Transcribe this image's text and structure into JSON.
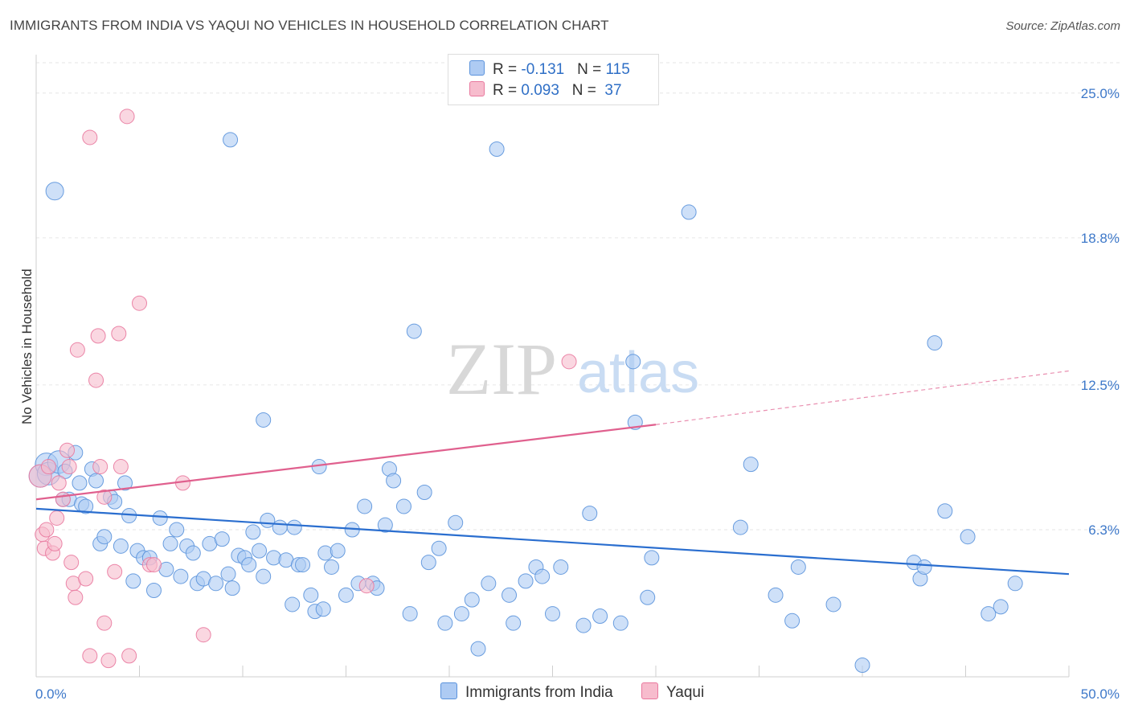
{
  "title": "IMMIGRANTS FROM INDIA VS YAQUI NO VEHICLES IN HOUSEHOLD CORRELATION CHART",
  "source": "Source: ZipAtlas.com",
  "watermark": {
    "zip": "ZIP",
    "atlas": "atlas"
  },
  "legend": {
    "rows": [
      {
        "r_label": "R = ",
        "r_value": "-0.131",
        "n_label": "N = ",
        "n_value": "115",
        "color": "#aecbf3"
      },
      {
        "r_label": "R = ",
        "r_value": "0.093",
        "n_label": "N = ",
        "n_value": " 37",
        "color": "#f7bccd"
      }
    ]
  },
  "bottom_legend": [
    "Immigrants from India",
    "Yaqui"
  ],
  "chart_data": {
    "type": "scatter",
    "title": "IMMIGRANTS FROM INDIA VS YAQUI NO VEHICLES IN HOUSEHOLD CORRELATION CHART",
    "xlabel": "",
    "ylabel": "No Vehicles in Household",
    "xlim": [
      0,
      50
    ],
    "ylim": [
      0,
      26.3
    ],
    "x_tick_labels": [
      "0.0%",
      "50.0%"
    ],
    "y_ticks": [
      6.3,
      12.5,
      18.8,
      25.0
    ],
    "y_tick_labels": [
      "6.3%",
      "12.5%",
      "18.8%",
      "25.0%"
    ],
    "grid": true,
    "legend_position": "top-center",
    "colors": {
      "india": "#5b93dc",
      "india_fill": "#aecbf3",
      "yaqui": "#e9799e",
      "yaqui_fill": "#f7bccd",
      "india_line": "#2a6ecf",
      "yaqui_line": "#e0608e"
    },
    "series": [
      {
        "name": "Immigrants from India",
        "r": -0.131,
        "n": 115,
        "trend": {
          "x": [
            0,
            50
          ],
          "y": [
            7.2,
            4.4
          ]
        },
        "points": [
          [
            0.2,
            8.6
          ],
          [
            0.5,
            9.1
          ],
          [
            0.6,
            8.7
          ],
          [
            0.9,
            20.8
          ],
          [
            1.1,
            9.2
          ],
          [
            1.3,
            7.6
          ],
          [
            1.4,
            8.8
          ],
          [
            1.6,
            7.6
          ],
          [
            1.9,
            9.6
          ],
          [
            2.1,
            8.3
          ],
          [
            2.2,
            7.4
          ],
          [
            2.4,
            7.3
          ],
          [
            2.7,
            8.9
          ],
          [
            2.9,
            8.4
          ],
          [
            3.1,
            5.7
          ],
          [
            3.3,
            6.0
          ],
          [
            3.6,
            7.7
          ],
          [
            3.8,
            7.5
          ],
          [
            4.1,
            5.6
          ],
          [
            4.3,
            8.3
          ],
          [
            4.5,
            6.9
          ],
          [
            4.7,
            4.1
          ],
          [
            4.9,
            5.4
          ],
          [
            5.2,
            5.1
          ],
          [
            5.5,
            5.1
          ],
          [
            5.7,
            3.7
          ],
          [
            6.0,
            6.8
          ],
          [
            6.3,
            4.6
          ],
          [
            6.5,
            5.7
          ],
          [
            6.8,
            6.3
          ],
          [
            7.0,
            4.3
          ],
          [
            7.3,
            5.6
          ],
          [
            7.6,
            5.3
          ],
          [
            7.8,
            4.0
          ],
          [
            8.1,
            4.2
          ],
          [
            8.4,
            5.7
          ],
          [
            8.7,
            4.0
          ],
          [
            9.0,
            5.9
          ],
          [
            9.3,
            4.4
          ],
          [
            9.5,
            3.8
          ],
          [
            9.8,
            5.2
          ],
          [
            10.1,
            5.1
          ],
          [
            10.3,
            4.8
          ],
          [
            10.5,
            6.2
          ],
          [
            10.8,
            5.4
          ],
          [
            11.0,
            4.3
          ],
          [
            11.2,
            6.7
          ],
          [
            11.5,
            5.1
          ],
          [
            11.8,
            6.4
          ],
          [
            12.1,
            5.0
          ],
          [
            12.4,
            3.1
          ],
          [
            12.7,
            4.8
          ],
          [
            12.9,
            4.8
          ],
          [
            9.4,
            23.0
          ],
          [
            11.0,
            11.0
          ],
          [
            12.5,
            6.4
          ],
          [
            13.3,
            3.5
          ],
          [
            13.7,
            9.0
          ],
          [
            13.5,
            2.8
          ],
          [
            13.9,
            2.9
          ],
          [
            14.0,
            5.3
          ],
          [
            14.3,
            4.7
          ],
          [
            14.6,
            5.4
          ],
          [
            15.0,
            3.5
          ],
          [
            15.3,
            6.3
          ],
          [
            15.6,
            4.0
          ],
          [
            15.9,
            7.3
          ],
          [
            16.3,
            4.0
          ],
          [
            16.5,
            3.8
          ],
          [
            16.9,
            6.5
          ],
          [
            17.1,
            8.9
          ],
          [
            17.3,
            8.4
          ],
          [
            17.8,
            7.3
          ],
          [
            18.1,
            2.7
          ],
          [
            18.3,
            14.8
          ],
          [
            18.8,
            7.9
          ],
          [
            19.0,
            4.9
          ],
          [
            19.5,
            5.5
          ],
          [
            19.8,
            2.3
          ],
          [
            20.3,
            6.6
          ],
          [
            20.6,
            2.7
          ],
          [
            21.1,
            3.3
          ],
          [
            21.4,
            1.2
          ],
          [
            21.9,
            4.0
          ],
          [
            22.3,
            22.6
          ],
          [
            22.9,
            3.5
          ],
          [
            23.1,
            2.3
          ],
          [
            23.7,
            4.1
          ],
          [
            24.2,
            4.7
          ],
          [
            24.5,
            4.3
          ],
          [
            25.0,
            2.7
          ],
          [
            25.4,
            4.7
          ],
          [
            26.5,
            2.2
          ],
          [
            26.8,
            7.0
          ],
          [
            27.3,
            2.6
          ],
          [
            28.3,
            2.3
          ],
          [
            28.9,
            13.5
          ],
          [
            29.0,
            10.9
          ],
          [
            29.6,
            3.4
          ],
          [
            29.8,
            5.1
          ],
          [
            31.6,
            19.9
          ],
          [
            34.1,
            6.4
          ],
          [
            34.6,
            9.1
          ],
          [
            35.8,
            3.5
          ],
          [
            36.6,
            2.4
          ],
          [
            36.9,
            4.7
          ],
          [
            38.6,
            3.1
          ],
          [
            40.0,
            0.5
          ],
          [
            42.5,
            4.9
          ],
          [
            42.8,
            4.2
          ],
          [
            43.0,
            4.7
          ],
          [
            44.0,
            7.1
          ],
          [
            45.1,
            6.0
          ],
          [
            46.1,
            2.7
          ],
          [
            46.7,
            3.0
          ],
          [
            47.4,
            4.0
          ],
          [
            43.5,
            14.3
          ]
        ]
      },
      {
        "name": "Yaqui",
        "r": 0.093,
        "n": 37,
        "trend": {
          "x": [
            0,
            30
          ],
          "y": [
            7.6,
            10.8
          ]
        },
        "trend_dashed": {
          "x": [
            30,
            50
          ],
          "y": [
            10.8,
            13.1
          ]
        },
        "points": [
          [
            0.2,
            8.6
          ],
          [
            0.3,
            6.1
          ],
          [
            0.4,
            5.5
          ],
          [
            0.5,
            6.3
          ],
          [
            0.6,
            9.0
          ],
          [
            0.8,
            5.3
          ],
          [
            0.9,
            5.7
          ],
          [
            1.0,
            6.8
          ],
          [
            1.1,
            8.3
          ],
          [
            1.3,
            7.6
          ],
          [
            1.5,
            9.7
          ],
          [
            1.6,
            9.0
          ],
          [
            1.7,
            4.9
          ],
          [
            1.8,
            4.0
          ],
          [
            1.9,
            3.4
          ],
          [
            2.0,
            14.0
          ],
          [
            2.4,
            4.2
          ],
          [
            2.6,
            0.9
          ],
          [
            2.6,
            23.1
          ],
          [
            2.9,
            12.7
          ],
          [
            3.0,
            14.6
          ],
          [
            3.1,
            9.0
          ],
          [
            3.3,
            2.3
          ],
          [
            3.3,
            7.7
          ],
          [
            3.5,
            0.7
          ],
          [
            3.8,
            4.5
          ],
          [
            4.0,
            14.7
          ],
          [
            4.1,
            9.0
          ],
          [
            4.4,
            24.0
          ],
          [
            4.5,
            0.9
          ],
          [
            5.0,
            16.0
          ],
          [
            5.5,
            4.8
          ],
          [
            5.7,
            4.8
          ],
          [
            7.1,
            8.3
          ],
          [
            8.1,
            1.8
          ],
          [
            16.0,
            3.9
          ],
          [
            25.8,
            13.5
          ]
        ]
      }
    ]
  }
}
